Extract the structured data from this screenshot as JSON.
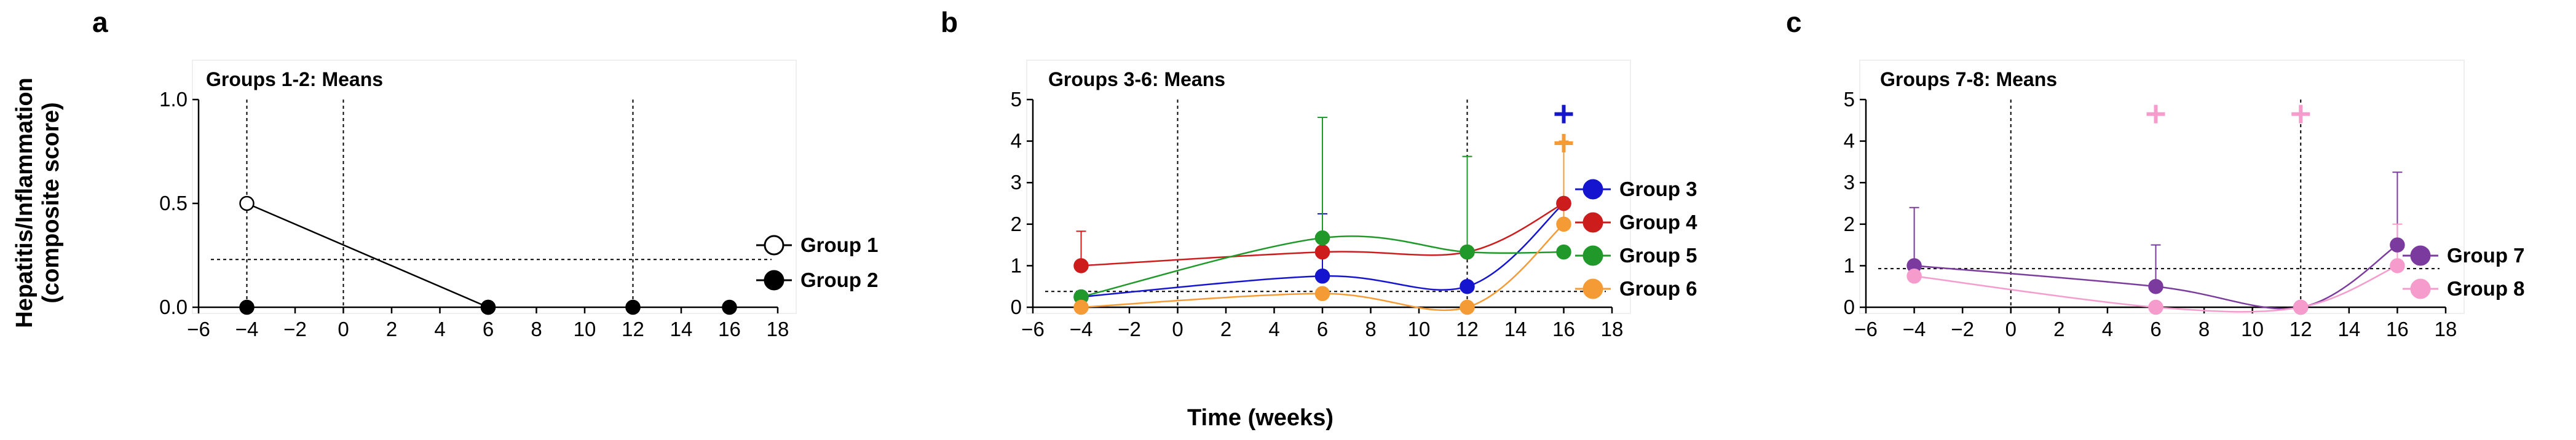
{
  "figure": {
    "ylabel_line1": "Hepatitis/Inflammation",
    "ylabel_line2": "(composite score)",
    "xlabel": "Time (weeks)"
  },
  "chart_data": [
    {
      "type": "line",
      "panel_label": "a",
      "title": "Groups 1-2: Means",
      "xlabel": "Time (weeks)",
      "ylabel": "Hepatitis/Inflammation (composite score)",
      "xlim": [
        -6,
        18
      ],
      "ylim": [
        0,
        1.0
      ],
      "xticks": [
        "−6",
        "−4",
        "−2",
        "0",
        "2",
        "4",
        "6",
        "8",
        "10",
        "12",
        "14",
        "16",
        "18"
      ],
      "yticks": [
        "0.0",
        "0.5",
        "1.0"
      ],
      "vlines": [
        -4,
        0,
        12
      ],
      "hline": 0.23,
      "series": [
        {
          "name": "Group 1",
          "color": "#000000",
          "marker": "open-circle",
          "smooth": false,
          "x": [
            -4,
            6
          ],
          "y": [
            0.5,
            0.0
          ],
          "err": []
        },
        {
          "name": "Group 2",
          "color": "#000000",
          "marker": "filled-circle",
          "smooth": false,
          "x": [
            -4,
            6,
            12,
            16
          ],
          "y": [
            0.0,
            0.0,
            0.0,
            0.0
          ],
          "err": [],
          "line": false
        }
      ],
      "crosses": []
    },
    {
      "type": "line",
      "panel_label": "b",
      "title": "Groups 3-6: Means",
      "xlabel": "Time (weeks)",
      "ylabel": "Hepatitis/Inflammation (composite score)",
      "xlim": [
        -6,
        18
      ],
      "ylim": [
        0,
        5
      ],
      "xticks": [
        "−6",
        "−4",
        "−2",
        "0",
        "2",
        "4",
        "6",
        "8",
        "10",
        "12",
        "14",
        "16",
        "18"
      ],
      "yticks": [
        "0",
        "1",
        "2",
        "3",
        "4",
        "5"
      ],
      "vlines": [
        0,
        12
      ],
      "hline": 0.38,
      "series": [
        {
          "name": "Group 3",
          "color": "#1515d0",
          "marker": "filled-circle",
          "smooth": true,
          "x": [
            -4,
            6,
            12,
            16
          ],
          "y": [
            0.25,
            0.75,
            0.5,
            2.5
          ],
          "err": [
            0,
            1.5,
            0,
            0
          ]
        },
        {
          "name": "Group 4",
          "color": "#cc1c1c",
          "marker": "filled-circle",
          "smooth": true,
          "x": [
            -4,
            6,
            12,
            16
          ],
          "y": [
            1.0,
            1.33,
            1.33,
            2.5
          ],
          "err": [
            0.83,
            0,
            2.3,
            0
          ]
        },
        {
          "name": "Group 5",
          "color": "#20992a",
          "marker": "filled-circle",
          "smooth": true,
          "x": [
            -4,
            6,
            12,
            16
          ],
          "y": [
            0.25,
            1.67,
            1.33,
            1.33
          ],
          "err": [
            0,
            2.9,
            2.3,
            0
          ]
        },
        {
          "name": "Group 6",
          "color": "#f59b35",
          "marker": "filled-circle",
          "smooth": true,
          "x": [
            -4,
            6,
            12,
            16
          ],
          "y": [
            0.0,
            0.33,
            0.0,
            2.0
          ],
          "err": [
            0,
            0,
            0,
            2.0
          ]
        }
      ],
      "crosses": [
        {
          "x": 16,
          "y": 4.65,
          "color": "#1515d0"
        },
        {
          "x": 16,
          "y": 3.95,
          "color": "#f59b35"
        }
      ]
    },
    {
      "type": "line",
      "panel_label": "c",
      "title": "Groups 7-8: Means",
      "xlabel": "Time (weeks)",
      "ylabel": "Hepatitis/Inflammation (composite score)",
      "xlim": [
        -6,
        18
      ],
      "ylim": [
        0,
        5
      ],
      "xticks": [
        "−6",
        "−4",
        "−2",
        "0",
        "2",
        "4",
        "6",
        "8",
        "10",
        "12",
        "14",
        "16",
        "18"
      ],
      "yticks": [
        "0",
        "1",
        "2",
        "3",
        "4",
        "5"
      ],
      "vlines": [
        0,
        12
      ],
      "hline": 0.93,
      "series": [
        {
          "name": "Group 7",
          "color": "#7b3b9e",
          "marker": "filled-circle",
          "smooth": true,
          "x": [
            -4,
            6,
            12,
            16
          ],
          "y": [
            1.0,
            0.5,
            0.0,
            1.5
          ],
          "err": [
            1.4,
            1.0,
            0,
            1.75
          ]
        },
        {
          "name": "Group 8",
          "color": "#f59ccd",
          "marker": "filled-circle",
          "smooth": true,
          "x": [
            -4,
            6,
            12,
            16
          ],
          "y": [
            0.75,
            0.0,
            0.0,
            1.0
          ],
          "err": [
            0,
            0,
            0,
            1.0
          ]
        }
      ],
      "crosses": [
        {
          "x": 6,
          "y": 4.65,
          "color": "#f59ccd"
        },
        {
          "x": 12,
          "y": 4.65,
          "color": "#f59ccd"
        }
      ]
    }
  ]
}
